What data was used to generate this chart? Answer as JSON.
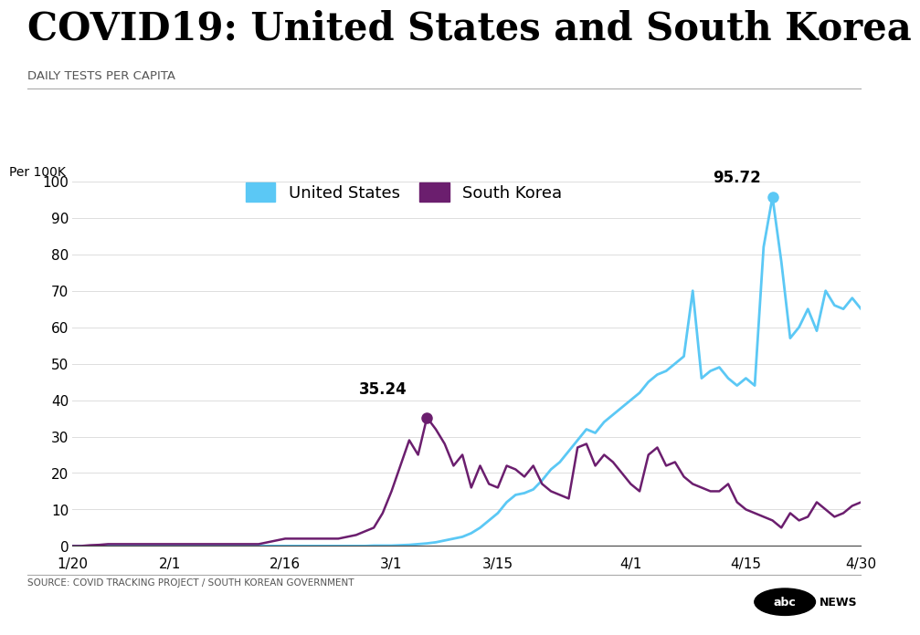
{
  "title": "COVID19: United States and South Korea",
  "subtitle": "DAILY TESTS PER CAPITA",
  "ylabel": "Per 100K",
  "source": "SOURCE: COVID TRACKING PROJECT / SOUTH KOREAN GOVERNMENT",
  "ylim": [
    0,
    100
  ],
  "yticks": [
    0,
    10,
    20,
    30,
    40,
    50,
    60,
    70,
    80,
    90,
    100
  ],
  "xtick_labels": [
    "1/20",
    "2/1",
    "2/16",
    "3/1",
    "3/15",
    "4/1",
    "4/15",
    "4/30"
  ],
  "us_color": "#5BC8F5",
  "sk_color": "#6B1E6E",
  "background_color": "#FFFFFF",
  "us_peak_value": 95.72,
  "sk_peak_value": 35.24,
  "us_data": [
    0.0,
    0.0,
    0.0,
    0.0,
    0.0,
    0.0,
    0.0,
    0.0,
    0.0,
    0.0,
    0.0,
    0.0,
    0.0,
    0.0,
    0.0,
    0.0,
    0.0,
    0.0,
    0.0,
    0.0,
    0.0,
    0.0,
    0.0,
    0.0,
    0.0,
    0.0,
    0.0,
    0.0,
    0.0,
    0.0,
    0.0,
    0.0,
    0.0,
    0.0,
    0.1,
    0.1,
    0.1,
    0.2,
    0.3,
    0.5,
    0.7,
    1.0,
    1.5,
    2.0,
    2.5,
    3.5,
    5.0,
    7.0,
    9.0,
    12.0,
    14.0,
    14.5,
    15.5,
    18.0,
    21.0,
    23.0,
    26.0,
    29.0,
    32.0,
    31.0,
    34.0,
    36.0,
    38.0,
    40.0,
    42.0,
    45.0,
    47.0,
    48.0,
    50.0,
    52.0,
    70.0,
    46.0,
    48.0,
    49.0,
    46.0,
    44.0,
    46.0,
    44.0,
    82.0,
    95.72,
    78.0,
    57.0,
    60.0,
    65.0,
    59.0,
    70.0,
    66.0,
    65.0,
    68.0,
    65.0
  ],
  "sk_data": [
    0.0,
    0.0,
    0.2,
    0.3,
    0.5,
    0.5,
    0.5,
    0.5,
    0.5,
    0.5,
    0.5,
    0.5,
    0.5,
    0.5,
    0.5,
    0.5,
    0.5,
    0.5,
    0.5,
    0.5,
    0.5,
    0.5,
    1.0,
    1.5,
    2.0,
    2.0,
    2.0,
    2.0,
    2.0,
    2.0,
    2.0,
    2.5,
    3.0,
    4.0,
    5.0,
    9.0,
    15.0,
    22.0,
    29.0,
    25.0,
    35.24,
    32.0,
    28.0,
    22.0,
    25.0,
    16.0,
    22.0,
    17.0,
    16.0,
    22.0,
    21.0,
    19.0,
    22.0,
    17.0,
    15.0,
    14.0,
    13.0,
    27.0,
    28.0,
    22.0,
    25.0,
    23.0,
    20.0,
    17.0,
    15.0,
    25.0,
    27.0,
    22.0,
    23.0,
    19.0,
    17.0,
    16.0,
    15.0,
    15.0,
    17.0,
    12.0,
    10.0,
    9.0,
    8.0,
    7.0,
    5.0,
    9.0,
    7.0,
    8.0,
    12.0,
    10.0,
    8.0,
    9.0,
    11.0,
    12.0
  ],
  "n_points": 90,
  "sk_peak_idx": 40,
  "us_peak_idx": 79,
  "xtick_positions_days": [
    0,
    12,
    27,
    41,
    55,
    72,
    86,
    101
  ],
  "total_days": 101
}
